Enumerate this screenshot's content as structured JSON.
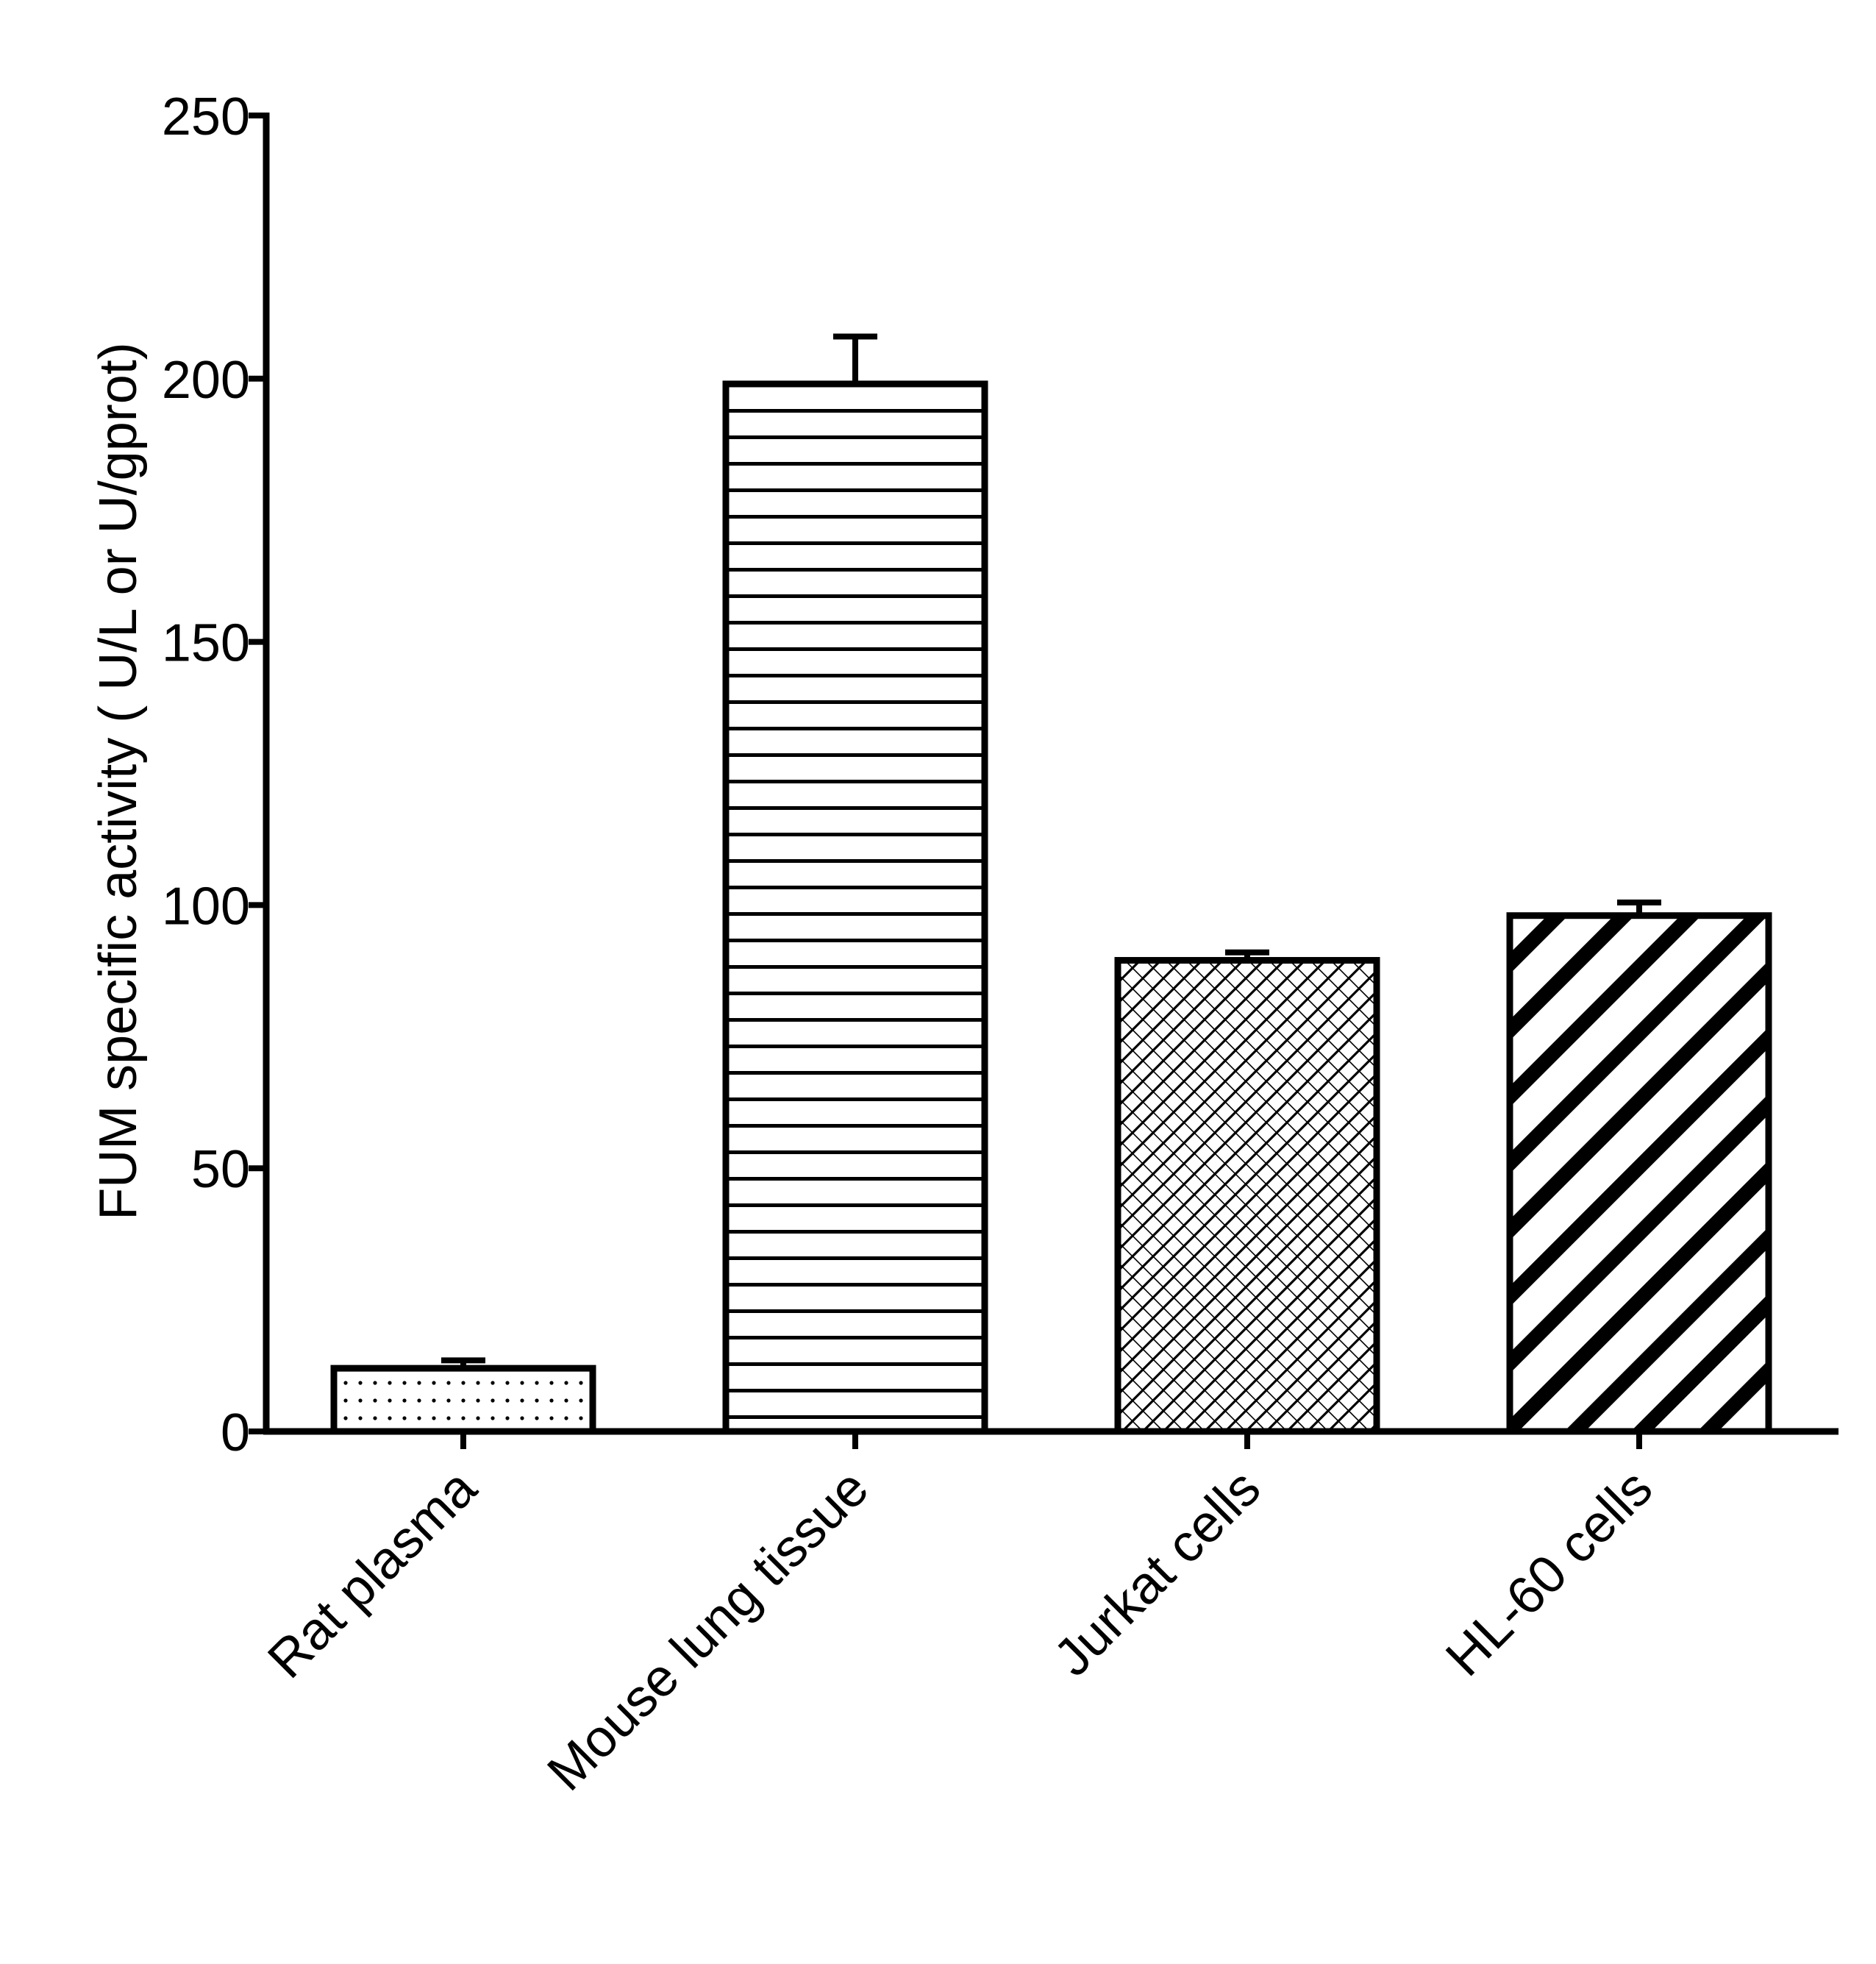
{
  "chart_data": {
    "type": "bar",
    "title": "",
    "xlabel": "",
    "ylabel": "FUM specific activity ( U/L or U/gprot)",
    "ylim": [
      0,
      250
    ],
    "yticks": [
      0,
      50,
      100,
      150,
      200,
      250
    ],
    "categories": [
      "Rat plasma",
      "Mouse lung tissue",
      "Jurkat cells",
      "HL-60 cells"
    ],
    "values": [
      12,
      199,
      89.5,
      98
    ],
    "errors": [
      1.5,
      9,
      1.5,
      2.5
    ],
    "fill_patterns": [
      "dots",
      "horizontal-lines",
      "crosshatch",
      "diagonal-stripes"
    ],
    "colors": {
      "stroke": "#000000",
      "background": "#ffffff"
    },
    "grid": false,
    "legend": "none"
  }
}
